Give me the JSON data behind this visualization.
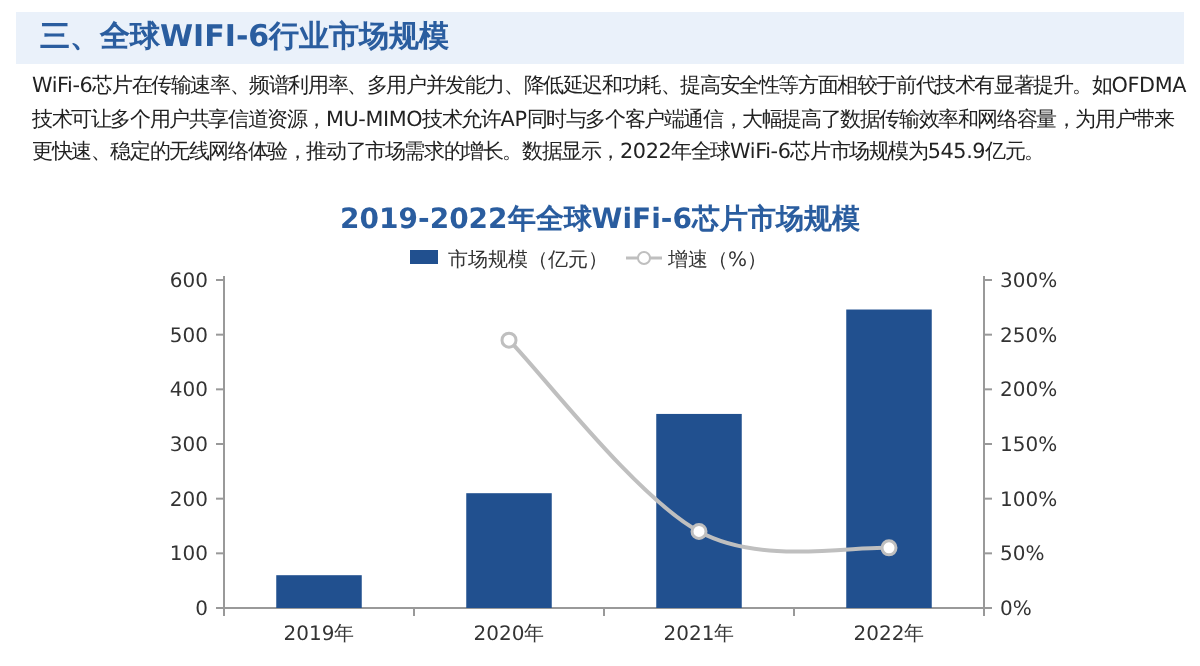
{
  "chart_data": {
    "type": "bar",
    "title": "2019-2022年全球WiFi-6芯片市场规模",
    "annotations": [
      "三、全球WIFI-6行业市场规模",
      "WiFi-6芯片在传输速率、频谱利用率、多用户并发能力、降低延迟和功耗、提高安全性等方面相较于前代技术有显著提升。如OFDMA技术可让多个用户共享信道资源，MU-MIMO技术允许AP同时与多个客户端通信，大幅提高了数据传输效率和网络容量，为用户带来更快速、稳定的无线网络体验，推动了市场需求的增长。数据显示，2022年全球WiFi-6芯片市场规模为545.9亿元。"
    ],
    "categories": [
      "2019年",
      "2020年",
      "2021年",
      "2022年"
    ],
    "series": [
      {
        "name": "市场规模（亿元）",
        "color": "#21508f",
        "values": [
          60,
          210,
          355,
          546
        ]
      },
      {
        "name": "增速（%）",
        "type": "line",
        "axis": "y2",
        "color": "#bfbfbf",
        "values": [
          null,
          245,
          70,
          55
        ]
      }
    ],
    "marker": "circle",
    "legend": "top",
    "ylim": [
      0,
      600
    ],
    "yticks": [
      0,
      100,
      200,
      300,
      400,
      500,
      600
    ],
    "y2lim": [
      0,
      300
    ],
    "y2ticks": [
      {
        "value": 0,
        "label": "0%"
      },
      {
        "value": 50,
        "label": "50%"
      },
      {
        "value": 100,
        "label": "100%"
      },
      {
        "value": 150,
        "label": "150%"
      },
      {
        "value": 200,
        "label": "200%"
      },
      {
        "value": 250,
        "label": "250%"
      },
      {
        "value": 300,
        "label": "300%"
      }
    ]
  }
}
